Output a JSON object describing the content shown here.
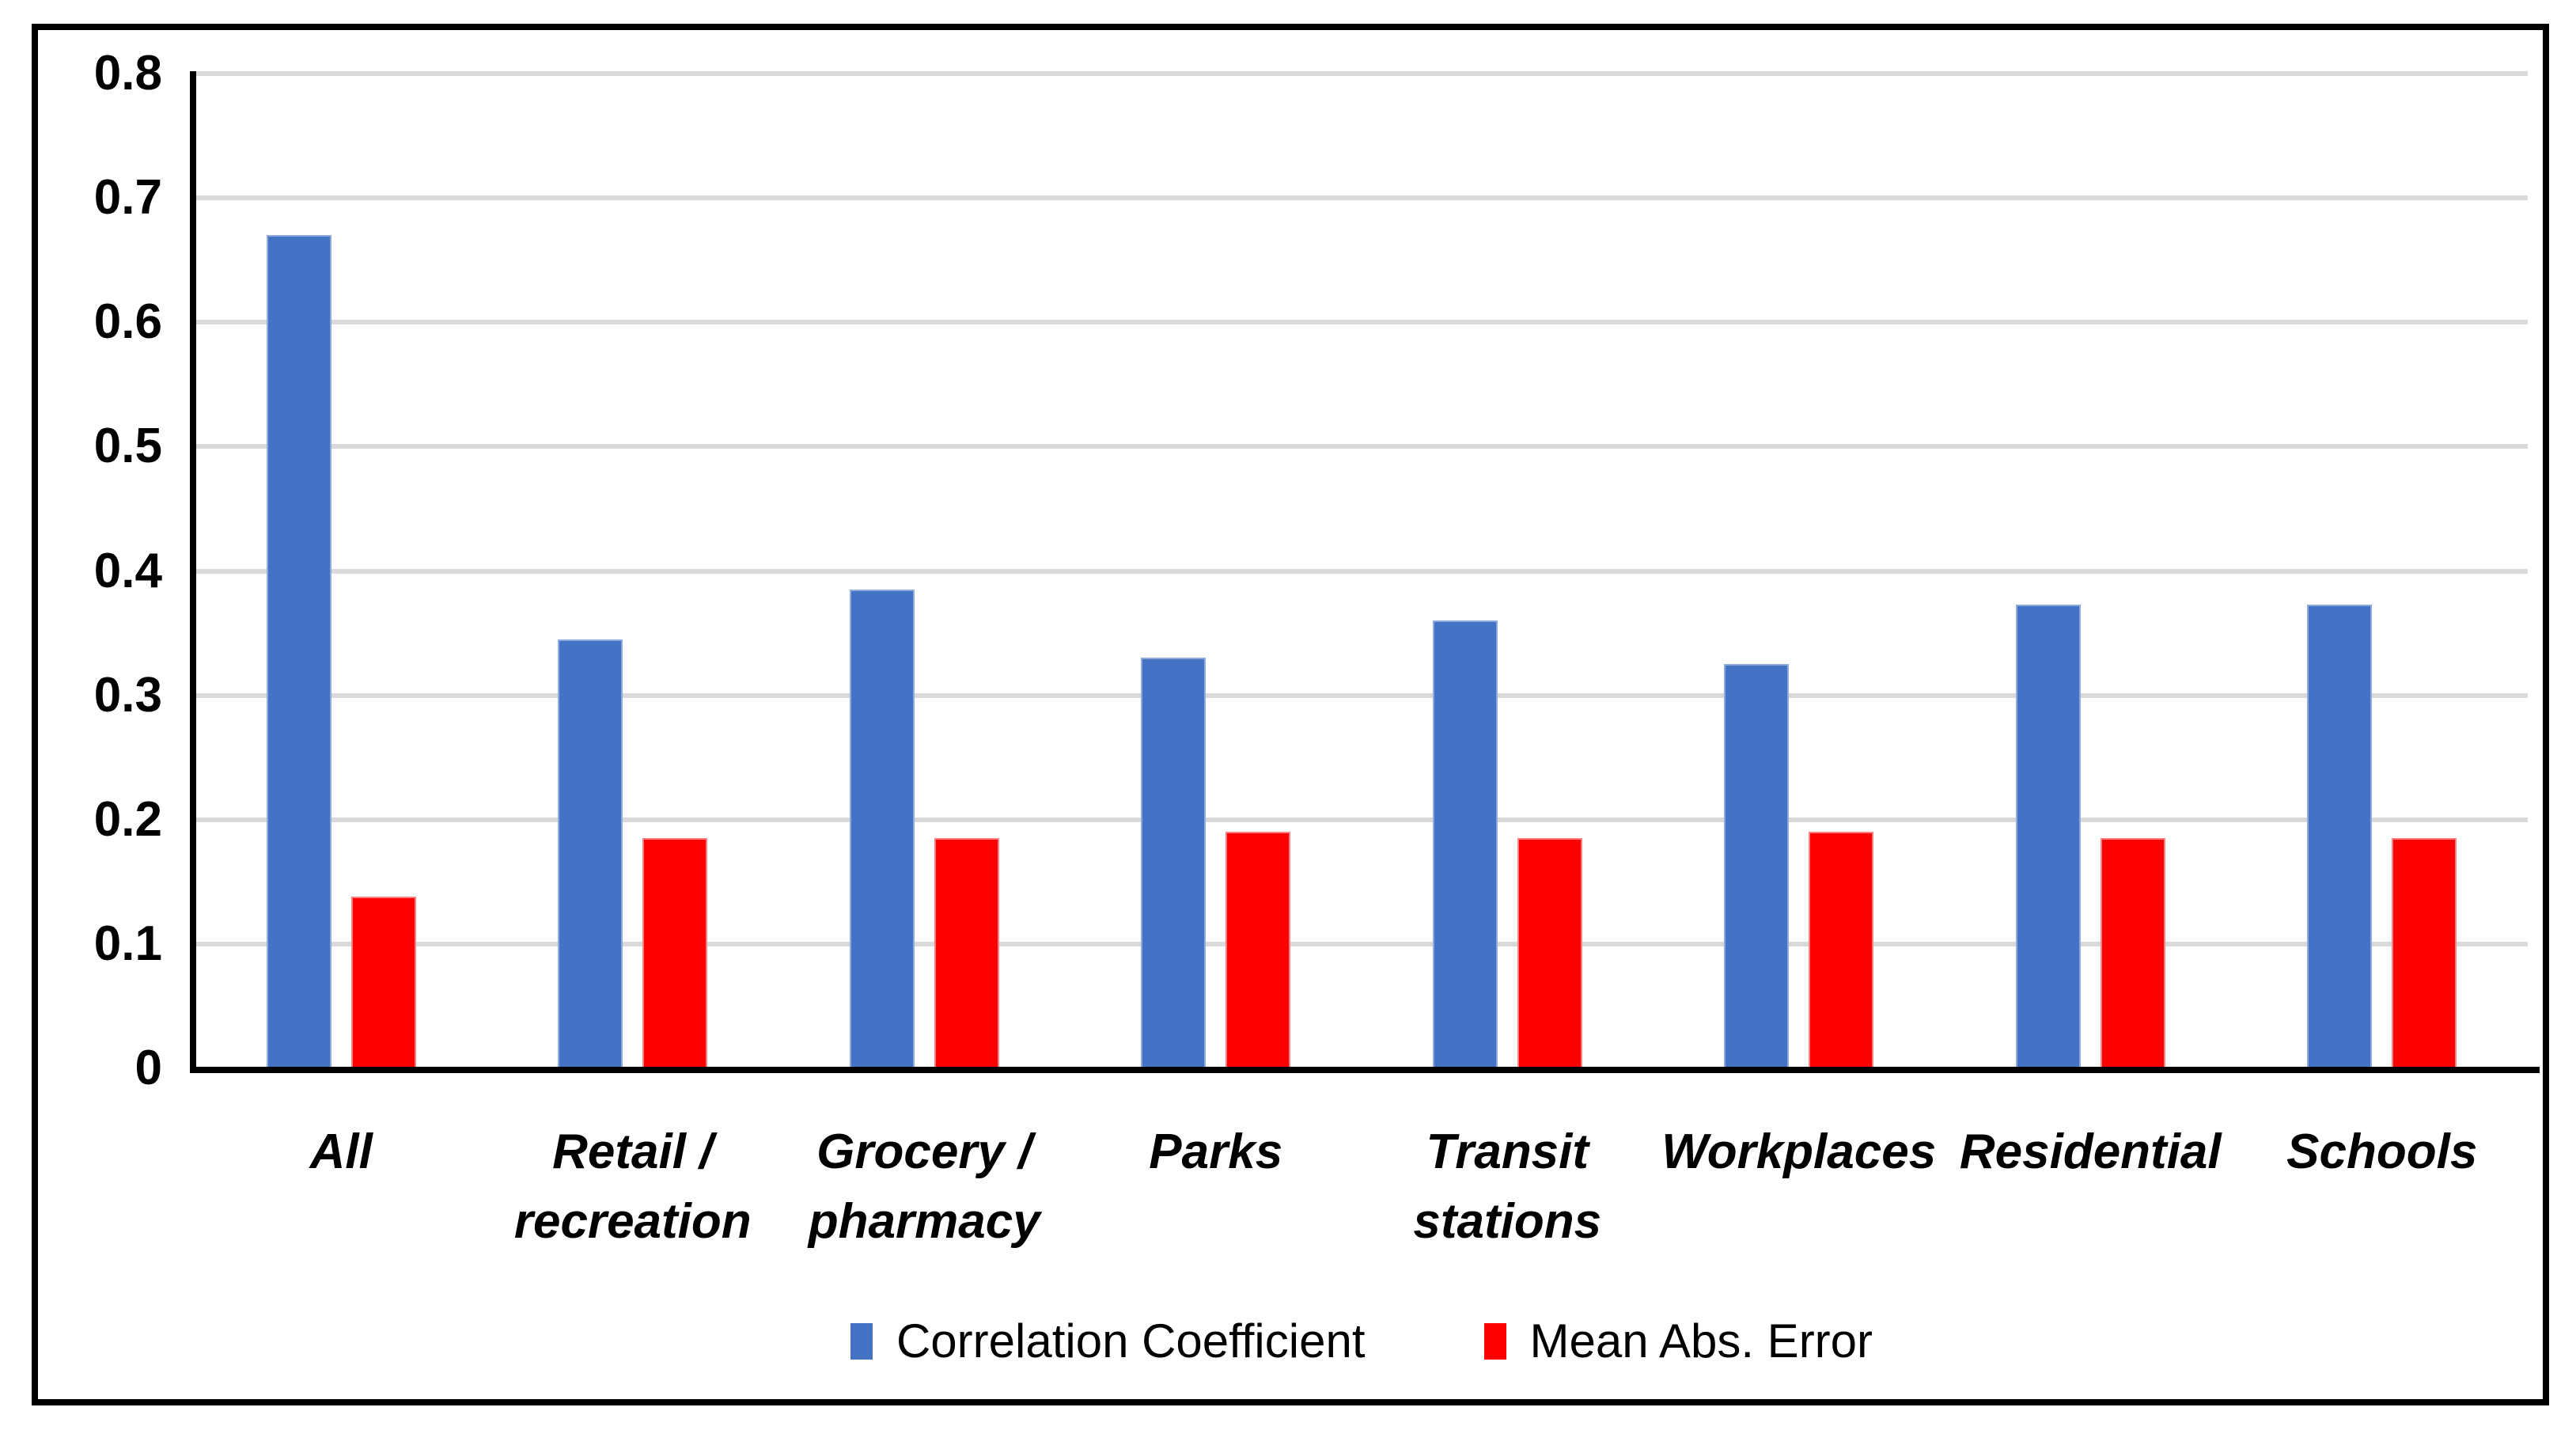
{
  "chart_data": {
    "type": "bar",
    "title": "",
    "xlabel": "",
    "ylabel": "",
    "categories": [
      "All",
      "Retail / recreation",
      "Grocery / pharmacy",
      "Parks",
      "Transit stations",
      "Workplaces",
      "Residential",
      "Schools"
    ],
    "category_label_lines": [
      [
        "All"
      ],
      [
        "Retail /",
        "recreation"
      ],
      [
        "Grocery /",
        "pharmacy"
      ],
      [
        "Parks"
      ],
      [
        "Transit",
        "stations"
      ],
      [
        "Workplaces"
      ],
      [
        "Residential"
      ],
      [
        "Schools"
      ]
    ],
    "series": [
      {
        "name": "Correlation Coefficient",
        "color": "#4472C4",
        "border_color": "#8FAADC",
        "values": [
          0.67,
          0.345,
          0.385,
          0.33,
          0.36,
          0.325,
          0.373,
          0.373
        ]
      },
      {
        "name": "Mean Abs. Error",
        "color": "#FF0000",
        "border_color": "#FF8080",
        "values": [
          0.138,
          0.185,
          0.185,
          0.19,
          0.185,
          0.19,
          0.185,
          0.185
        ]
      }
    ],
    "y_axis": {
      "min": 0,
      "max": 0.8,
      "step": 0.1,
      "tick_labels": [
        "0",
        "0.1",
        "0.2",
        "0.3",
        "0.4",
        "0.5",
        "0.6",
        "0.7",
        "0.8"
      ]
    },
    "grid": true,
    "legend_position": "bottom"
  },
  "colors": {
    "gridline": "#D9D9D9",
    "axis": "#000000",
    "frame_border": "#000000",
    "background": "#FFFFFF",
    "text": "#000000"
  }
}
